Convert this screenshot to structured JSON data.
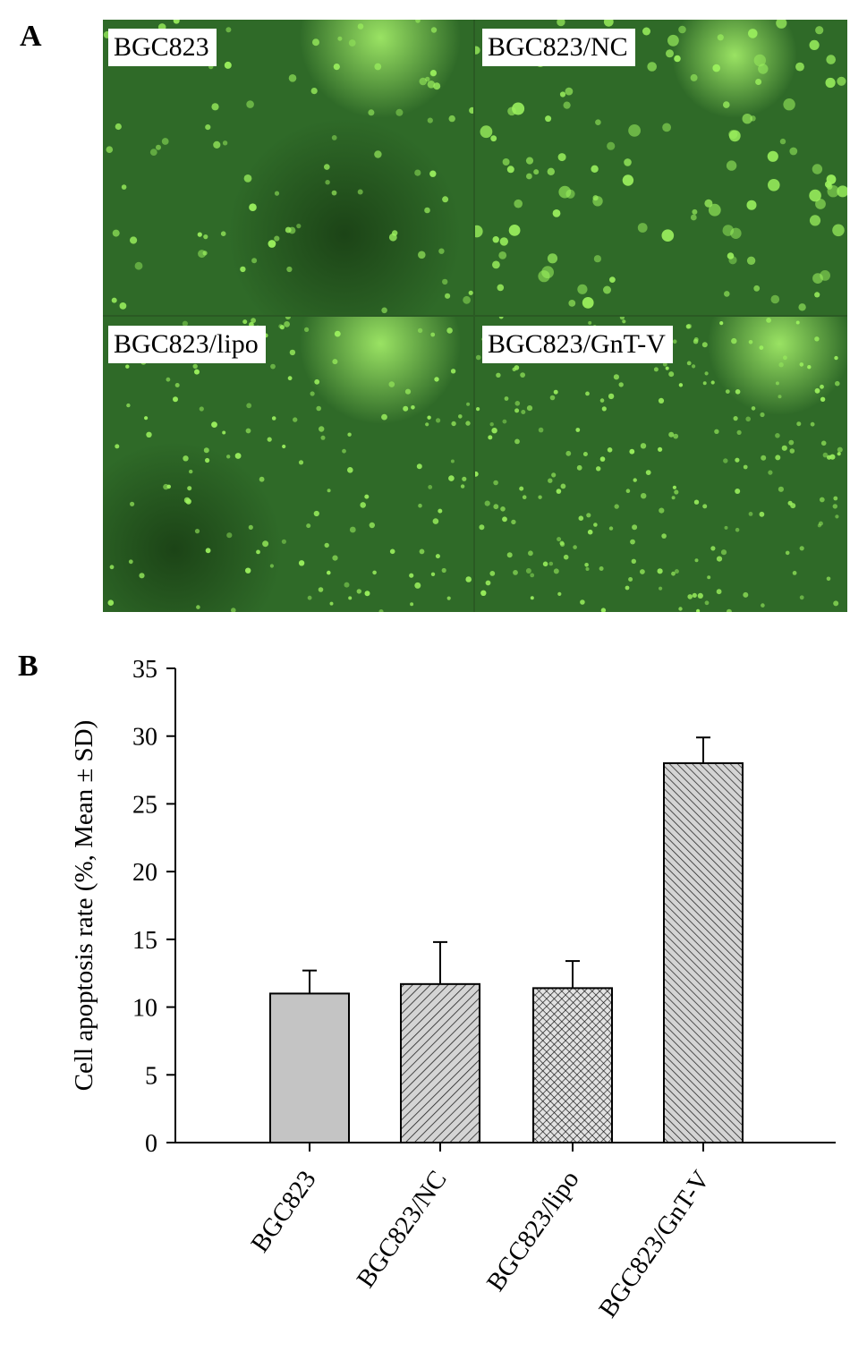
{
  "panels": {
    "a_label": "A",
    "b_label": "B"
  },
  "micrographs": [
    {
      "caption": "BGC823"
    },
    {
      "caption": "BGC823/NC"
    },
    {
      "caption": "BGC823/lipo"
    },
    {
      "caption": "BGC823/GnT-V"
    }
  ],
  "colors": {
    "micro_background": "#2f6a28",
    "cell_fluorescence": "#9cf25e",
    "bar_fill": "#c4c4c4",
    "bar_edge": "#000000"
  },
  "chart_data": {
    "type": "bar",
    "categories": [
      "BGC823",
      "BGC823/NC",
      "BGC823/lipo",
      "BGC823/GnT-V"
    ],
    "values": [
      11.0,
      11.7,
      11.4,
      28.0
    ],
    "errors": [
      1.7,
      3.1,
      2.0,
      1.9
    ],
    "bar_patterns": [
      "solid",
      "diagonal",
      "crosshatch",
      "diagonal-dense"
    ],
    "ylabel": "Cell apoptosis rate (%, Mean ± SD)",
    "ylim": [
      0,
      35
    ],
    "yticks": [
      "0",
      "5",
      "10",
      "15",
      "20",
      "25",
      "30",
      "35"
    ],
    "grid": false
  }
}
